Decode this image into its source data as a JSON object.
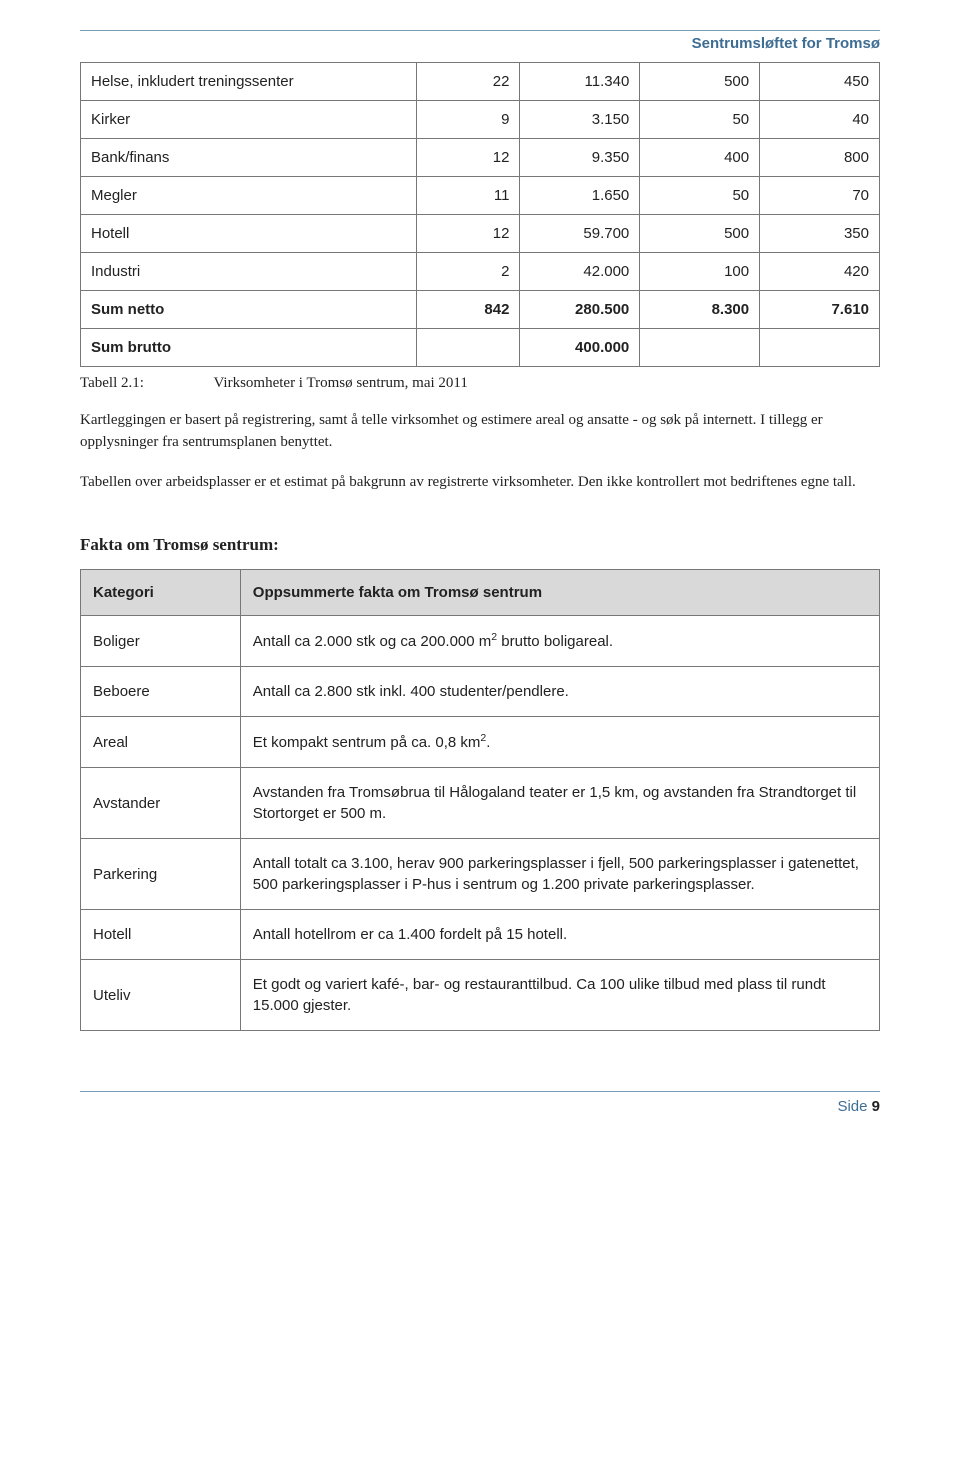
{
  "header": {
    "title": "Sentrumsløftet for Tromsø"
  },
  "table1": {
    "rows": [
      {
        "label": "Helse, inkludert treningssenter",
        "c1": "22",
        "c2": "11.340",
        "c3": "500",
        "c4": "450",
        "bold": false
      },
      {
        "label": "Kirker",
        "c1": "9",
        "c2": "3.150",
        "c3": "50",
        "c4": "40",
        "bold": false
      },
      {
        "label": "Bank/finans",
        "c1": "12",
        "c2": "9.350",
        "c3": "400",
        "c4": "800",
        "bold": false
      },
      {
        "label": "Megler",
        "c1": "11",
        "c2": "1.650",
        "c3": "50",
        "c4": "70",
        "bold": false
      },
      {
        "label": "Hotell",
        "c1": "12",
        "c2": "59.700",
        "c3": "500",
        "c4": "350",
        "bold": false
      },
      {
        "label": "Industri",
        "c1": "2",
        "c2": "42.000",
        "c3": "100",
        "c4": "420",
        "bold": false
      },
      {
        "label": "Sum netto",
        "c1": "842",
        "c2": "280.500",
        "c3": "8.300",
        "c4": "7.610",
        "bold": true
      },
      {
        "label": "Sum brutto",
        "c1": "",
        "c2": "400.000",
        "c3": "",
        "c4": "",
        "bold": true
      }
    ],
    "caption_label": "Tabell 2.1:",
    "caption_text": "Virksomheter i Tromsø sentrum, mai 2011"
  },
  "para1": "Kartleggingen er basert på registrering, samt å telle virksomhet og estimere areal og ansatte - og søk på internett. I tillegg er opplysninger fra sentrumsplanen benyttet.",
  "para2": "Tabellen over arbeidsplasser er et estimat på bakgrunn av registrerte virksomheter. Den ikke kontrollert mot bedriftenes egne tall.",
  "section_heading": "Fakta om Tromsø sentrum:",
  "table2": {
    "header": {
      "col1": "Kategori",
      "col2": "Oppsummerte fakta om Tromsø sentrum"
    },
    "rows": [
      {
        "cat": "Boliger",
        "val_html": "Antall ca 2.000 stk og ca 200.000 m<sup>2</sup> brutto boligareal."
      },
      {
        "cat": "Beboere",
        "val_html": "Antall ca 2.800 stk inkl. 400 studenter/pendlere."
      },
      {
        "cat": "Areal",
        "val_html": "Et kompakt sentrum på ca. 0,8 km<sup>2</sup>."
      },
      {
        "cat": "Avstander",
        "val_html": "Avstanden fra Tromsøbrua til Hålogaland teater er 1,5 km, og avstanden fra Strandtorget til Stortorget er 500 m."
      },
      {
        "cat": "Parkering",
        "val_html": "Antall totalt ca 3.100, herav 900 parkeringsplasser i fjell, 500 parkeringsplasser i gatenettet, 500 parkeringsplasser i P-hus i sentrum og 1.200 private parkeringsplasser."
      },
      {
        "cat": "Hotell",
        "val_html": "Antall hotellrom er ca 1.400 fordelt på 15 hotell."
      },
      {
        "cat": "Uteliv",
        "val_html": "Et godt og variert kafé-, bar- og restauranttilbud. Ca 100 ulike tilbud med plass til rundt 15.000 gjester."
      }
    ]
  },
  "footer": {
    "side_label": "Side",
    "page_num": "9"
  }
}
